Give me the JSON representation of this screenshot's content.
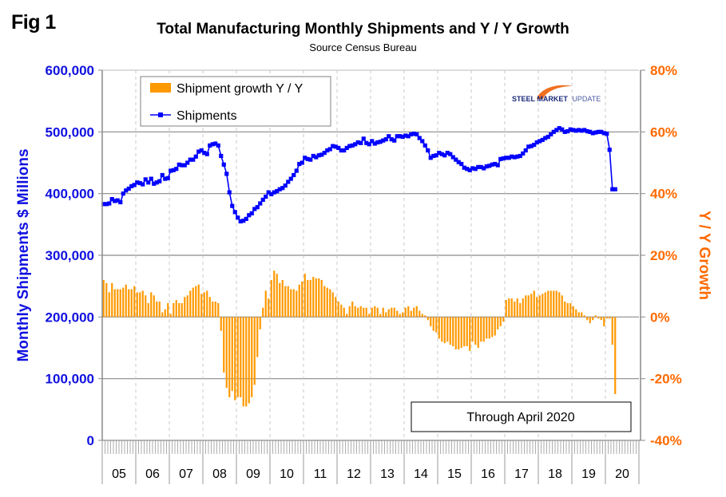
{
  "figure_label": "Fig 1",
  "logo": {
    "text_bold": "STEEL MARKET",
    "text_light": "UPDATE",
    "icon": "swoosh-logo-icon"
  },
  "colors": {
    "shipments": "#0000ff",
    "growth": "#ff9900",
    "left_axis": "#1010e0",
    "right_axis": "#ff6a00"
  },
  "chart_data": {
    "type": "bar+line",
    "title": "Total Manufacturing Monthly Shipments and Y / Y Growth",
    "subtitle": "Source Census Bureau",
    "ylabel_left": "Monthly Shipments $ Millions",
    "ylabel_right": "Y / Y Growth",
    "xlabel": "",
    "ylim_left": [
      0,
      600000
    ],
    "ylim_right": [
      -40,
      80
    ],
    "yticks_left": [
      "0",
      "100,000",
      "200,000",
      "300,000",
      "400,000",
      "500,000",
      "600,000"
    ],
    "yticks_right": [
      "-40%",
      "-20%",
      "0%",
      "20%",
      "40%",
      "60%",
      "80%"
    ],
    "x_start": "2005-01",
    "x_end": "2020-04",
    "xtick_labels": [
      "05",
      "06",
      "07",
      "08",
      "09",
      "10",
      "11",
      "12",
      "13",
      "14",
      "15",
      "16",
      "17",
      "18",
      "19",
      "20"
    ],
    "grid": true,
    "legend_position": "top-left",
    "legend": [
      "Shipment growth Y / Y",
      "Shipments"
    ],
    "annotation": "Through April 2020",
    "series": [
      {
        "name": "Shipments",
        "type": "line",
        "axis": "left",
        "unit": "$ Millions",
        "values": [
          383000,
          383000,
          384000,
          391000,
          388000,
          389000,
          386000,
          400000,
          405000,
          408000,
          412000,
          414000,
          418000,
          417000,
          415000,
          423000,
          418000,
          424000,
          416000,
          418000,
          420000,
          430000,
          424000,
          425000,
          437000,
          438000,
          440000,
          447000,
          446000,
          446000,
          450000,
          455000,
          455000,
          460000,
          468000,
          470000,
          466000,
          464000,
          478000,
          480000,
          481000,
          478000,
          461000,
          447000,
          432000,
          402000,
          380000,
          370000,
          361000,
          355000,
          356000,
          359000,
          365000,
          368000,
          375000,
          378000,
          384000,
          390000,
          395000,
          402000,
          399000,
          402000,
          404000,
          407000,
          409000,
          413000,
          419000,
          424000,
          430000,
          437000,
          448000,
          450000,
          458000,
          456000,
          455000,
          461000,
          459000,
          462000,
          463000,
          466000,
          470000,
          472000,
          477000,
          476000,
          474000,
          470000,
          470000,
          474000,
          477000,
          478000,
          480000,
          483000,
          482000,
          489000,
          482000,
          480000,
          485000,
          481000,
          483000,
          484000,
          486000,
          488000,
          493000,
          488000,
          486000,
          493000,
          493000,
          492000,
          494000,
          493000,
          496000,
          497000,
          496000,
          490000,
          485000,
          478000,
          470000,
          458000,
          461000,
          462000,
          466000,
          464000,
          462000,
          466000,
          464000,
          459000,
          455000,
          451000,
          448000,
          442000,
          440000,
          438000,
          441000,
          440000,
          443000,
          443000,
          441000,
          444000,
          445000,
          447000,
          448000,
          446000,
          456000,
          457000,
          458000,
          458000,
          460000,
          459000,
          460000,
          461000,
          465000,
          470000,
          476000,
          477000,
          479000,
          483000,
          485000,
          487000,
          490000,
          492000,
          496000,
          500000,
          503000,
          506000,
          504000,
          500000,
          501000,
          504000,
          503000,
          502000,
          503000,
          502000,
          503000,
          501000,
          500000,
          498000,
          499000,
          500000,
          500000,
          498000,
          497000,
          471000,
          407000,
          407000
        ]
      },
      {
        "name": "Shipment growth Y / Y",
        "type": "bar",
        "axis": "right",
        "unit": "%",
        "values": [
          12.0,
          11.0,
          8.0,
          11.0,
          9.0,
          9.0,
          9.0,
          9.5,
          10.5,
          9.0,
          9.0,
          10.0,
          8.0,
          8.0,
          8.5,
          7.0,
          4.5,
          8.0,
          7.0,
          5.0,
          5.0,
          1.5,
          2.5,
          4.5,
          1.0,
          4.5,
          5.5,
          4.5,
          4.5,
          6.5,
          7.0,
          8.5,
          9.5,
          10.0,
          10.5,
          7.5,
          8.0,
          8.5,
          6.5,
          5.0,
          5.0,
          4.5,
          -4.5,
          -18.0,
          -23.0,
          -26.0,
          -24.0,
          -27.0,
          -26.0,
          -26.0,
          -29.0,
          -29.0,
          -28.0,
          -26.0,
          -22.0,
          -13.0,
          -4.0,
          3.0,
          8.5,
          6.0,
          12.0,
          15.0,
          14.0,
          11.0,
          12.0,
          10.0,
          10.0,
          9.0,
          9.0,
          8.5,
          10.5,
          11.5,
          14.0,
          12.0,
          12.0,
          13.0,
          12.5,
          12.5,
          12.0,
          10.0,
          9.5,
          9.0,
          8.0,
          6.5,
          5.0,
          4.0,
          3.0,
          1.0,
          3.5,
          5.0,
          3.5,
          3.0,
          3.5,
          3.0,
          3.0,
          1.0,
          3.0,
          3.5,
          3.0,
          1.0,
          3.0,
          1.5,
          2.5,
          3.0,
          3.0,
          2.0,
          1.0,
          1.5,
          3.0,
          3.5,
          2.0,
          3.0,
          3.5,
          2.0,
          1.0,
          0.5,
          -1.0,
          -3.0,
          -4.5,
          -5.0,
          -7.0,
          -8.0,
          -8.5,
          -8.0,
          -9.0,
          -9.5,
          -10.5,
          -10.5,
          -10.0,
          -9.5,
          -9.5,
          -11.0,
          -8.0,
          -9.0,
          -10.0,
          -8.0,
          -8.0,
          -7.0,
          -7.0,
          -6.5,
          -6.0,
          -4.0,
          -3.0,
          -1.5,
          5.5,
          6.0,
          6.0,
          5.0,
          6.0,
          4.5,
          6.0,
          7.0,
          7.0,
          7.5,
          8.5,
          6.5,
          7.0,
          7.5,
          8.0,
          8.5,
          8.5,
          8.5,
          8.5,
          8.0,
          7.0,
          5.0,
          4.5,
          4.5,
          3.5,
          2.5,
          1.5,
          1.5,
          0.5,
          -1.0,
          -2.0,
          -1.0,
          0.5,
          -0.5,
          -1.0,
          -3.0,
          -0.5,
          -0.5,
          -9.0,
          -25.0
        ]
      }
    ]
  }
}
